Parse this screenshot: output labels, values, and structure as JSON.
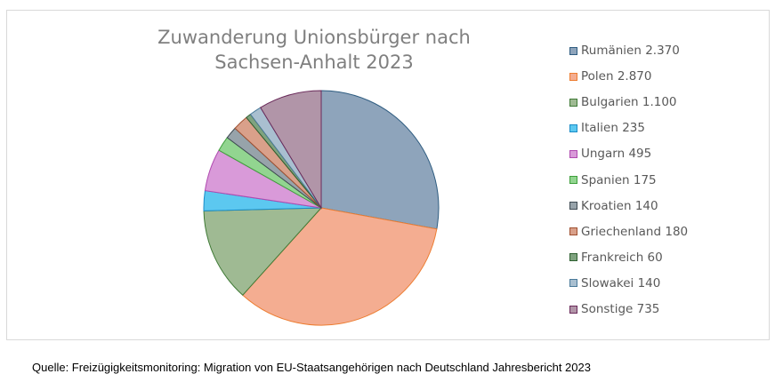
{
  "chart_data": {
    "type": "pie",
    "title_lines": [
      "Zuwanderung Unionsbürger nach",
      "Sachsen-Anhalt 2023"
    ],
    "legend_position": "right",
    "slices": [
      {
        "label": "Rumänien 2.370",
        "category": "Rumänien",
        "value": 2370,
        "color": "#8ea4bb",
        "edge": "#2e5c80"
      },
      {
        "label": "Polen 2.870",
        "category": "Polen",
        "value": 2870,
        "color": "#f4ad91",
        "edge": "#ed7d31"
      },
      {
        "label": "Bulgarien 1.100",
        "category": "Bulgarien",
        "value": 1100,
        "color": "#9fba93",
        "edge": "#3f7a36"
      },
      {
        "label": "Italien 235",
        "category": "Italien",
        "value": 235,
        "color": "#5cc8f0",
        "edge": "#1a8cc8"
      },
      {
        "label": "Ungarn 495",
        "category": "Ungarn",
        "value": 495,
        "color": "#d99ad9",
        "edge": "#b04ab0"
      },
      {
        "label": "Spanien 175",
        "category": "Spanien",
        "value": 175,
        "color": "#92d590",
        "edge": "#3f9f3c"
      },
      {
        "label": "Kroatien 140",
        "category": "Kroatien",
        "value": 140,
        "color": "#97a3aa",
        "edge": "#3e4a52"
      },
      {
        "label": "Griechenland 180",
        "category": "Griechenland",
        "value": 180,
        "color": "#d9a08a",
        "edge": "#a05030"
      },
      {
        "label": "Frankreich 60",
        "category": "Frankreich",
        "value": 60,
        "color": "#7fa37f",
        "edge": "#2e6030"
      },
      {
        "label": "Slowakei 140",
        "category": "Slowakei",
        "value": 140,
        "color": "#a9bfd0",
        "edge": "#4a7a9a"
      },
      {
        "label": "Sonstige 735",
        "category": "Sonstige",
        "value": 735,
        "color": "#b195a8",
        "edge": "#6a2a5a"
      }
    ]
  },
  "footer": {
    "source": "Quelle: Freizügigkeitsmonitoring: Migration von EU-Staatsangehörigen nach Deutschland Jahresbericht 2023"
  }
}
